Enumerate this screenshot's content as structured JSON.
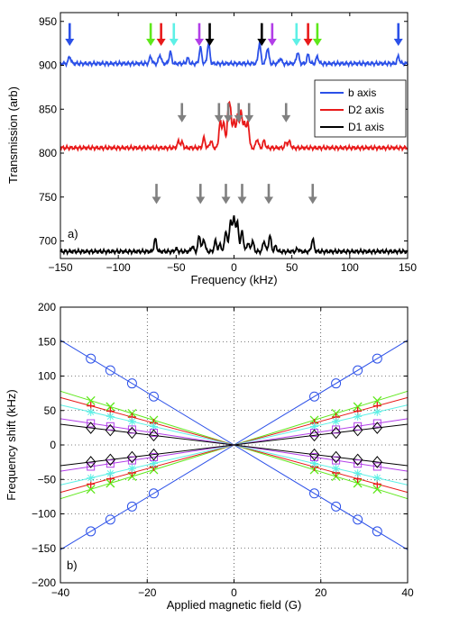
{
  "chart_data": [
    {
      "panel_label": "a)",
      "type": "line",
      "xlabel": "Frequency (kHz)",
      "ylabel": "Transmission (arb)",
      "xlim": [
        -150,
        150
      ],
      "ylim": [
        680,
        960
      ],
      "xticks": [
        -150,
        -100,
        -50,
        0,
        50,
        100,
        150
      ],
      "yticks": [
        700,
        750,
        800,
        850,
        900,
        950
      ],
      "legend": {
        "placement": "right-middle",
        "entries": [
          {
            "name": "b axis",
            "color": "#2b50e8"
          },
          {
            "name": "D2 axis",
            "color": "#e81a1a"
          },
          {
            "name": "D1 axis",
            "color": "#000000"
          }
        ]
      },
      "series": [
        {
          "name": "b axis",
          "color": "#2b50e8",
          "baseline": 902,
          "peaks": [
            [
              -142,
              8
            ],
            [
              -72,
              8
            ],
            [
              -64,
              10
            ],
            [
              -55,
              13
            ],
            [
              -40,
              6
            ],
            [
              -29,
              18
            ],
            [
              -22,
              23
            ],
            [
              22,
              23
            ],
            [
              29,
              18
            ],
            [
              40,
              6
            ],
            [
              55,
              13
            ],
            [
              64,
              10
            ],
            [
              72,
              8
            ],
            [
              142,
              8
            ]
          ]
        },
        {
          "name": "D2 axis",
          "color": "#e81a1a",
          "baseline": 806,
          "peaks": [
            [
              -48,
              7
            ],
            [
              -45,
              6
            ],
            [
              -26,
              11
            ],
            [
              -20,
              8
            ],
            [
              -12,
              30
            ],
            [
              -9,
              30
            ],
            [
              -5,
              40
            ],
            [
              -3,
              38
            ],
            [
              0,
              30
            ],
            [
              3,
              36
            ],
            [
              6,
              42
            ],
            [
              9,
              30
            ],
            [
              12,
              30
            ],
            [
              20,
              10
            ],
            [
              26,
              8
            ],
            [
              45,
              6
            ],
            [
              48,
              7
            ]
          ]
        },
        {
          "name": "D1 axis",
          "color": "#000000",
          "baseline": 688,
          "peaks": [
            [
              -68,
              14
            ],
            [
              -50,
              3
            ],
            [
              -36,
              6
            ],
            [
              -30,
              18
            ],
            [
              -26,
              14
            ],
            [
              -16,
              12
            ],
            [
              -12,
              8
            ],
            [
              -7,
              24
            ],
            [
              -3,
              36
            ],
            [
              0,
              40
            ],
            [
              3,
              33
            ],
            [
              7,
              24
            ],
            [
              12,
              10
            ],
            [
              16,
              12
            ],
            [
              26,
              12
            ],
            [
              31,
              18
            ],
            [
              36,
              6
            ],
            [
              55,
              3
            ],
            [
              68,
              14
            ]
          ]
        }
      ],
      "arrows": [
        {
          "x": -142,
          "level": "top",
          "color": "#2b50e8"
        },
        {
          "x": -72,
          "level": "top",
          "color": "#5ee81a"
        },
        {
          "x": -63,
          "level": "top",
          "color": "#e81a1a"
        },
        {
          "x": -52,
          "level": "top",
          "color": "#5ef0e6"
        },
        {
          "x": -30,
          "level": "top",
          "color": "#b23ee8"
        },
        {
          "x": -21,
          "level": "top",
          "color": "#000000"
        },
        {
          "x": 24,
          "level": "top",
          "color": "#000000"
        },
        {
          "x": 33,
          "level": "top",
          "color": "#b23ee8"
        },
        {
          "x": 54,
          "level": "top",
          "color": "#5ef0e6"
        },
        {
          "x": 64,
          "level": "top",
          "color": "#e81a1a"
        },
        {
          "x": 72,
          "level": "top",
          "color": "#5ee81a"
        },
        {
          "x": 142,
          "level": "top",
          "color": "#2b50e8"
        },
        {
          "x": -45,
          "level": "mid",
          "color": "#808080"
        },
        {
          "x": -13,
          "level": "mid",
          "color": "#808080"
        },
        {
          "x": -5,
          "level": "mid",
          "color": "#808080"
        },
        {
          "x": 4,
          "level": "mid",
          "color": "#808080"
        },
        {
          "x": 13,
          "level": "mid",
          "color": "#808080"
        },
        {
          "x": 45,
          "level": "mid",
          "color": "#808080"
        },
        {
          "x": -67,
          "level": "low",
          "color": "#808080"
        },
        {
          "x": -29,
          "level": "low",
          "color": "#808080"
        },
        {
          "x": -7,
          "level": "low",
          "color": "#808080"
        },
        {
          "x": 7,
          "level": "low",
          "color": "#808080"
        },
        {
          "x": 30,
          "level": "low",
          "color": "#808080"
        },
        {
          "x": 68,
          "level": "low",
          "color": "#808080"
        }
      ]
    },
    {
      "panel_label": "b)",
      "type": "line",
      "xlabel": "Applied magnetic field (G)",
      "ylabel": "Frequency shift (kHz)",
      "xlim": [
        -40,
        40
      ],
      "ylim": [
        -200,
        200
      ],
      "xticks": [
        -40,
        -20,
        0,
        20,
        40
      ],
      "yticks": [
        -200,
        -150,
        -100,
        -50,
        0,
        50,
        100,
        150,
        200
      ],
      "grid": true,
      "marker_x": [
        -33,
        -28.5,
        -23.5,
        -18.5,
        18.5,
        23.5,
        28.5,
        33
      ],
      "series": [
        {
          "color": "#2b50e8",
          "marker": "circle",
          "slopes": [
            3.8,
            -3.8
          ]
        },
        {
          "color": "#5ee81a",
          "marker": "x",
          "slopes": [
            1.95,
            -1.95
          ]
        },
        {
          "color": "#e81a1a",
          "marker": "plus",
          "slopes": [
            1.72,
            -1.72
          ]
        },
        {
          "color": "#5ef0e6",
          "marker": "star",
          "slopes": [
            1.45,
            -1.45
          ]
        },
        {
          "color": "#b23ee8",
          "marker": "square",
          "slopes": [
            0.95,
            -0.95
          ]
        },
        {
          "color": "#000000",
          "marker": "diamond",
          "slopes": [
            0.75,
            -0.75
          ]
        }
      ]
    }
  ]
}
